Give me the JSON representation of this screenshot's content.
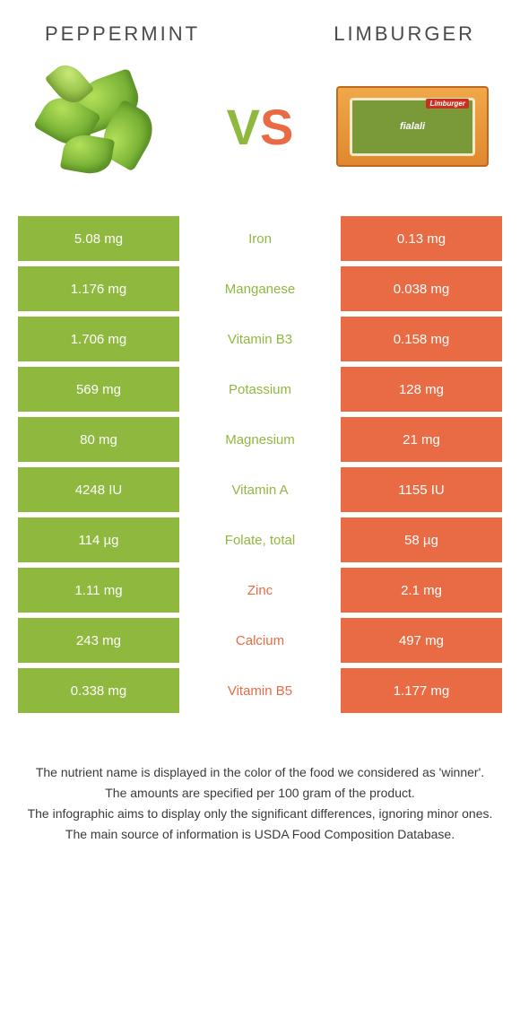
{
  "header": {
    "left_title": "PEPPERMINT",
    "right_title": "LIMBURGER",
    "vs_v": "V",
    "vs_s": "S"
  },
  "colors": {
    "green": "#8fb83e",
    "orange": "#e96b44",
    "text": "#3a3a3a"
  },
  "cheese": {
    "brand": "Limburger",
    "label": "fialali"
  },
  "rows": [
    {
      "left": "5.08 mg",
      "mid": "Iron",
      "right": "0.13 mg",
      "winner": "green"
    },
    {
      "left": "1.176 mg",
      "mid": "Manganese",
      "right": "0.038 mg",
      "winner": "green"
    },
    {
      "left": "1.706 mg",
      "mid": "Vitamin B3",
      "right": "0.158 mg",
      "winner": "green"
    },
    {
      "left": "569 mg",
      "mid": "Potassium",
      "right": "128 mg",
      "winner": "green"
    },
    {
      "left": "80 mg",
      "mid": "Magnesium",
      "right": "21 mg",
      "winner": "green"
    },
    {
      "left": "4248 IU",
      "mid": "Vitamin A",
      "right": "1155 IU",
      "winner": "green"
    },
    {
      "left": "114 µg",
      "mid": "Folate, total",
      "right": "58 µg",
      "winner": "green"
    },
    {
      "left": "1.11 mg",
      "mid": "Zinc",
      "right": "2.1 mg",
      "winner": "orange"
    },
    {
      "left": "243 mg",
      "mid": "Calcium",
      "right": "497 mg",
      "winner": "orange"
    },
    {
      "left": "0.338 mg",
      "mid": "Vitamin B5",
      "right": "1.177 mg",
      "winner": "orange"
    }
  ],
  "footer": {
    "line1": "The nutrient name is displayed in the color of the food we considered as 'winner'.",
    "line2": "The amounts are specified per 100 gram of the product.",
    "line3": "The infographic aims to display only the significant differences, ignoring minor ones.",
    "line4": "The main source of information is USDA Food Composition Database."
  }
}
